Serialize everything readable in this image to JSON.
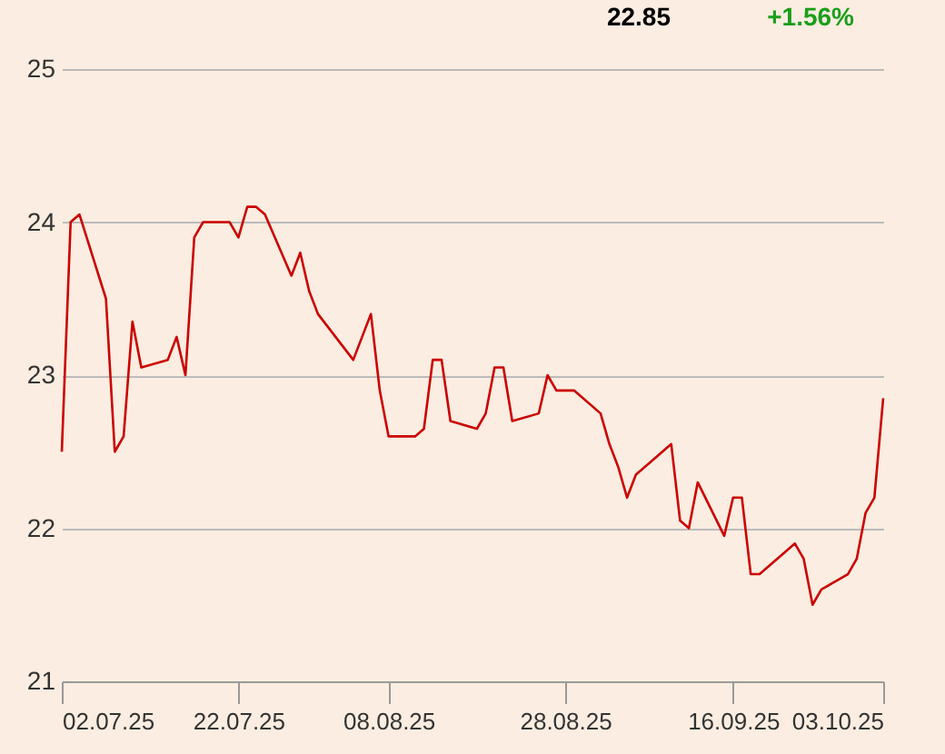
{
  "chart_data": {
    "type": "line",
    "annotations": [
      "22.85",
      "+1.56%"
    ],
    "x": [
      "2025-07-02",
      "2025-07-03",
      "2025-07-04",
      "2025-07-07",
      "2025-07-08",
      "2025-07-09",
      "2025-07-10",
      "2025-07-11",
      "2025-07-14",
      "2025-07-15",
      "2025-07-16",
      "2025-07-17",
      "2025-07-18",
      "2025-07-21",
      "2025-07-22",
      "2025-07-23",
      "2025-07-24",
      "2025-07-25",
      "2025-07-28",
      "2025-07-29",
      "2025-07-30",
      "2025-07-31",
      "2025-08-04",
      "2025-08-05",
      "2025-08-06",
      "2025-08-07",
      "2025-08-08",
      "2025-08-11",
      "2025-08-12",
      "2025-08-13",
      "2025-08-14",
      "2025-08-15",
      "2025-08-18",
      "2025-08-19",
      "2025-08-20",
      "2025-08-21",
      "2025-08-22",
      "2025-08-25",
      "2025-08-26",
      "2025-08-27",
      "2025-08-28",
      "2025-08-29",
      "2025-09-01",
      "2025-09-02",
      "2025-09-03",
      "2025-09-04",
      "2025-09-05",
      "2025-09-08",
      "2025-09-09",
      "2025-09-10",
      "2025-09-11",
      "2025-09-12",
      "2025-09-15",
      "2025-09-16",
      "2025-09-17",
      "2025-09-18",
      "2025-09-19",
      "2025-09-22",
      "2025-09-23",
      "2025-09-24",
      "2025-09-25",
      "2025-09-26",
      "2025-09-29",
      "2025-09-30",
      "2025-10-01",
      "2025-10-02",
      "2025-10-03"
    ],
    "series": [
      {
        "color": "#cc0000",
        "values": [
          22.5,
          24.0,
          24.05,
          23.5,
          22.5,
          22.6,
          23.35,
          23.05,
          23.1,
          23.25,
          23.0,
          23.9,
          24.0,
          24.0,
          23.9,
          24.1,
          24.1,
          24.05,
          23.65,
          23.8,
          23.55,
          23.4,
          23.1,
          23.25,
          23.4,
          22.9,
          22.6,
          22.6,
          22.65,
          23.1,
          23.1,
          22.7,
          22.65,
          22.75,
          23.05,
          23.05,
          22.7,
          22.75,
          23.0,
          22.9,
          22.9,
          22.9,
          22.75,
          22.55,
          22.4,
          22.2,
          22.35,
          22.5,
          22.55,
          22.05,
          22.0,
          22.3,
          21.95,
          22.2,
          22.2,
          21.7,
          21.7,
          21.85,
          21.9,
          21.8,
          21.5,
          21.6,
          21.7,
          21.8,
          22.1,
          22.2,
          22.85
        ]
      }
    ],
    "xlim": [
      "2025-07-02",
      "2025-10-03"
    ],
    "xticks": [
      {
        "value": "2025-07-02",
        "label": "02.07.25"
      },
      {
        "value": "2025-07-22",
        "label": "22.07.25"
      },
      {
        "value": "2025-08-08",
        "label": "08.08.25"
      },
      {
        "value": "2025-08-28",
        "label": "28.08.25"
      },
      {
        "value": "2025-09-16",
        "label": "16.09.25"
      },
      {
        "value": "2025-10-03",
        "label": "03.10.25"
      }
    ],
    "ylim": [
      21,
      25
    ],
    "yticks": [
      21,
      22,
      23,
      24,
      25
    ],
    "grid": "y",
    "marker": "none",
    "line_style": "solid"
  }
}
